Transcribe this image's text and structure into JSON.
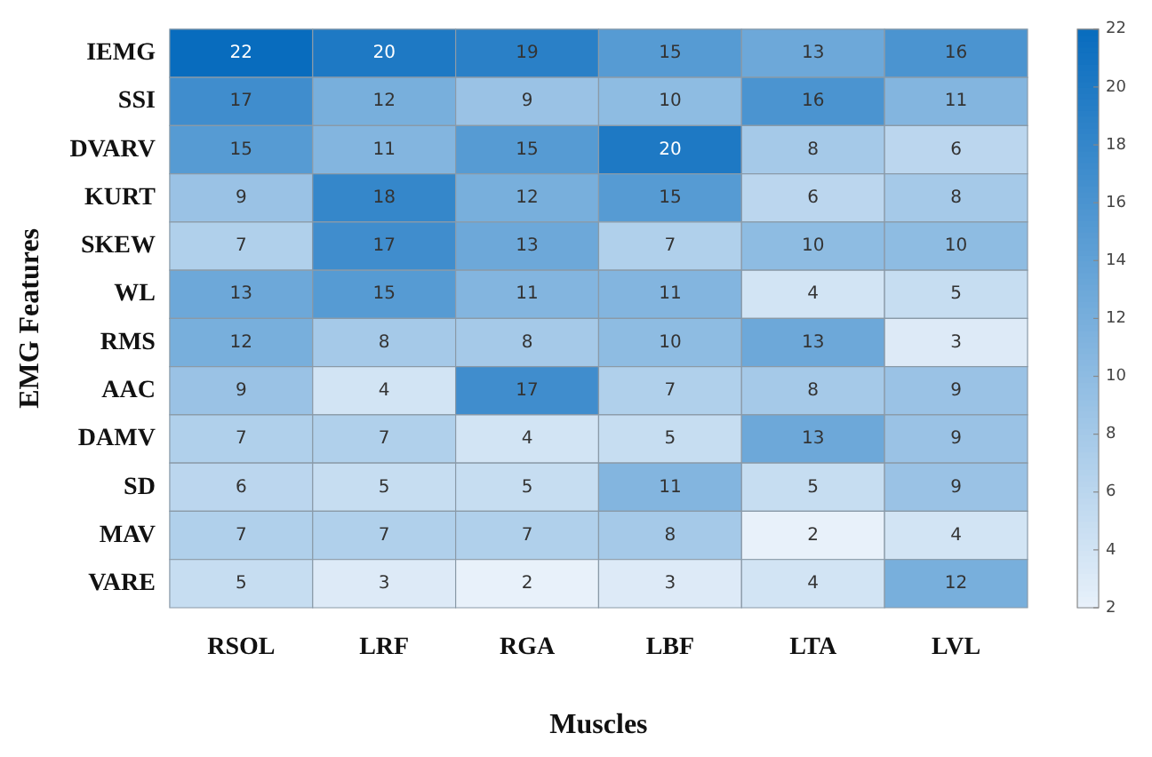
{
  "chart_data": {
    "type": "heatmap",
    "xlabel": "Muscles",
    "ylabel": "EMG Features",
    "categories": [
      "RSOL",
      "LRF",
      "RGA",
      "LBF",
      "LTA",
      "LVL"
    ],
    "y_categories": [
      "IEMG",
      "SSI",
      "DVARV",
      "KURT",
      "SKEW",
      "WL",
      "RMS",
      "AAC",
      "DAMV",
      "SD",
      "MAV",
      "VARE"
    ],
    "cells": [
      [
        22,
        20,
        19,
        15,
        13,
        16
      ],
      [
        17,
        12,
        9,
        10,
        16,
        11
      ],
      [
        15,
        11,
        15,
        20,
        8,
        6
      ],
      [
        9,
        18,
        12,
        15,
        6,
        8
      ],
      [
        7,
        17,
        13,
        7,
        10,
        10
      ],
      [
        13,
        15,
        11,
        11,
        4,
        5
      ],
      [
        12,
        8,
        8,
        10,
        13,
        3
      ],
      [
        9,
        4,
        17,
        7,
        8,
        9
      ],
      [
        7,
        7,
        4,
        5,
        13,
        9
      ],
      [
        6,
        5,
        5,
        11,
        5,
        9
      ],
      [
        7,
        7,
        7,
        8,
        2,
        4
      ],
      [
        5,
        3,
        2,
        3,
        4,
        12
      ]
    ],
    "clim": [
      2,
      22
    ],
    "cticks": [
      2,
      4,
      6,
      8,
      10,
      12,
      14,
      16,
      18,
      20,
      22
    ],
    "data_labels": true
  }
}
